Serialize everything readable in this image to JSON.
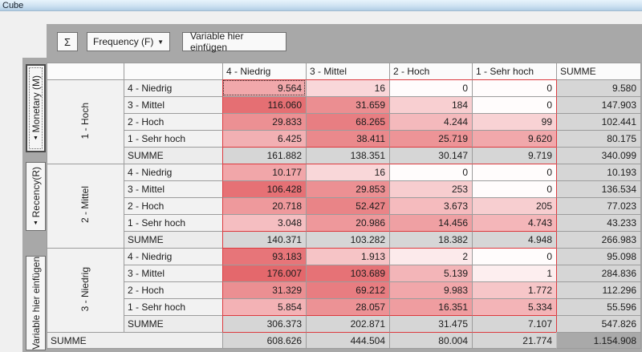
{
  "window": {
    "title": "Cube"
  },
  "toolbar": {
    "sigma_label": "Σ",
    "measure_value": "Frequency (F)",
    "dropdown_arrow": "▼",
    "insert_variable_label": "Variable hier einfügen"
  },
  "left_tabs": {
    "arrow": "▼",
    "items": [
      {
        "label": "Monetary (M)",
        "active": true
      },
      {
        "label": "Recency(R)",
        "active": false
      }
    ],
    "insert_label": "Variable hier einfügen"
  },
  "colors": {
    "block_border": "#dc3a3e",
    "summe_bg": "#d6d6d6",
    "grand_total_bg": "#a9a9a9",
    "panel": "#a8a8a8"
  },
  "table": {
    "col_headers": [
      "4 - Niedrig",
      "3 - Mittel",
      "2 - Hoch",
      "1 - Sehr hoch",
      "SUMME"
    ],
    "focused_cell": {
      "block": 0,
      "row": 0,
      "col": 0
    },
    "blocks": [
      {
        "group": "1 - Hoch",
        "rows": [
          {
            "label": "4 - Niedrig",
            "values": [
              "9.564",
              "16",
              "0",
              "0"
            ],
            "colors": [
              "#f1a8ab",
              "#f9d7d9",
              "#fffcfc",
              "#fffcfc"
            ],
            "summe": "9.580"
          },
          {
            "label": "3 - Mittel",
            "values": [
              "116.060",
              "31.659",
              "184",
              "0"
            ],
            "colors": [
              "#e56f73",
              "#eb8e91",
              "#f8cfd1",
              "#fffcfc"
            ],
            "summe": "147.903"
          },
          {
            "label": "2 - Hoch",
            "values": [
              "29.833",
              "68.265",
              "4.244",
              "99"
            ],
            "colors": [
              "#ec9093",
              "#e87e82",
              "#f4b9bc",
              "#f8d2d4"
            ],
            "summe": "102.441"
          },
          {
            "label": "1 - Sehr hoch",
            "values": [
              "6.425",
              "38.411",
              "25.719",
              "9.620"
            ],
            "colors": [
              "#f2b0b3",
              "#ea898c",
              "#ed9497",
              "#f1a8ab"
            ],
            "summe": "80.175"
          },
          {
            "label": "SUMME",
            "is_summe": true,
            "values": [
              "161.882",
              "138.351",
              "30.147",
              "9.719"
            ],
            "summe": "340.099"
          }
        ]
      },
      {
        "group": "2 - Mittel",
        "rows": [
          {
            "label": "4 - Niedrig",
            "values": [
              "10.177",
              "16",
              "0",
              "0"
            ],
            "colors": [
              "#f1a6a9",
              "#f9d7d9",
              "#fffcfc",
              "#fffcfc"
            ],
            "summe": "10.193"
          },
          {
            "label": "3 - Mittel",
            "values": [
              "106.428",
              "29.853",
              "253",
              "0"
            ],
            "colors": [
              "#e67175",
              "#ec9093",
              "#f7cdcf",
              "#fffcfc"
            ],
            "summe": "136.534"
          },
          {
            "label": "2 - Hoch",
            "values": [
              "20.718",
              "52.427",
              "3.673",
              "205"
            ],
            "colors": [
              "#ee999c",
              "#e98487",
              "#f5bbbe",
              "#f7ced0"
            ],
            "summe": "77.023"
          },
          {
            "label": "1 - Sehr hoch",
            "values": [
              "3.048",
              "20.986",
              "14.456",
              "4.743"
            ],
            "colors": [
              "#f5bec1",
              "#ee989b",
              "#efa0a3",
              "#f4b6b9"
            ],
            "summe": "43.233"
          },
          {
            "label": "SUMME",
            "is_summe": true,
            "values": [
              "140.371",
              "103.282",
              "18.382",
              "4.948"
            ],
            "summe": "266.983"
          }
        ]
      },
      {
        "group": "3 - Niedrig",
        "rows": [
          {
            "label": "4 - Niedrig",
            "values": [
              "93.183",
              "1.913",
              "2",
              "0"
            ],
            "colors": [
              "#e77579",
              "#f6c4c6",
              "#fceaeb",
              "#fffcfc"
            ],
            "summe": "95.098"
          },
          {
            "label": "3 - Mittel",
            "values": [
              "176.007",
              "103.689",
              "5.139",
              "1"
            ],
            "colors": [
              "#e4686c",
              "#e67276",
              "#f3b5b8",
              "#fdeeef"
            ],
            "summe": "284.836"
          },
          {
            "label": "2 - Hoch",
            "values": [
              "31.329",
              "69.212",
              "9.983",
              "1.772"
            ],
            "colors": [
              "#eb8f92",
              "#e87d81",
              "#f1a7aa",
              "#f6c6c8"
            ],
            "summe": "112.296"
          },
          {
            "label": "1 - Sehr hoch",
            "values": [
              "5.854",
              "28.057",
              "16.351",
              "5.334"
            ],
            "colors": [
              "#f3b2b5",
              "#ec9295",
              "#ef9da0",
              "#f3b4b7"
            ],
            "summe": "55.596"
          },
          {
            "label": "SUMME",
            "is_summe": true,
            "values": [
              "306.373",
              "202.871",
              "31.475",
              "7.107"
            ],
            "summe": "547.826"
          }
        ]
      }
    ],
    "grand": {
      "label": "SUMME",
      "values": [
        "608.626",
        "444.504",
        "80.004",
        "21.774"
      ],
      "summe": "1.154.908"
    }
  }
}
